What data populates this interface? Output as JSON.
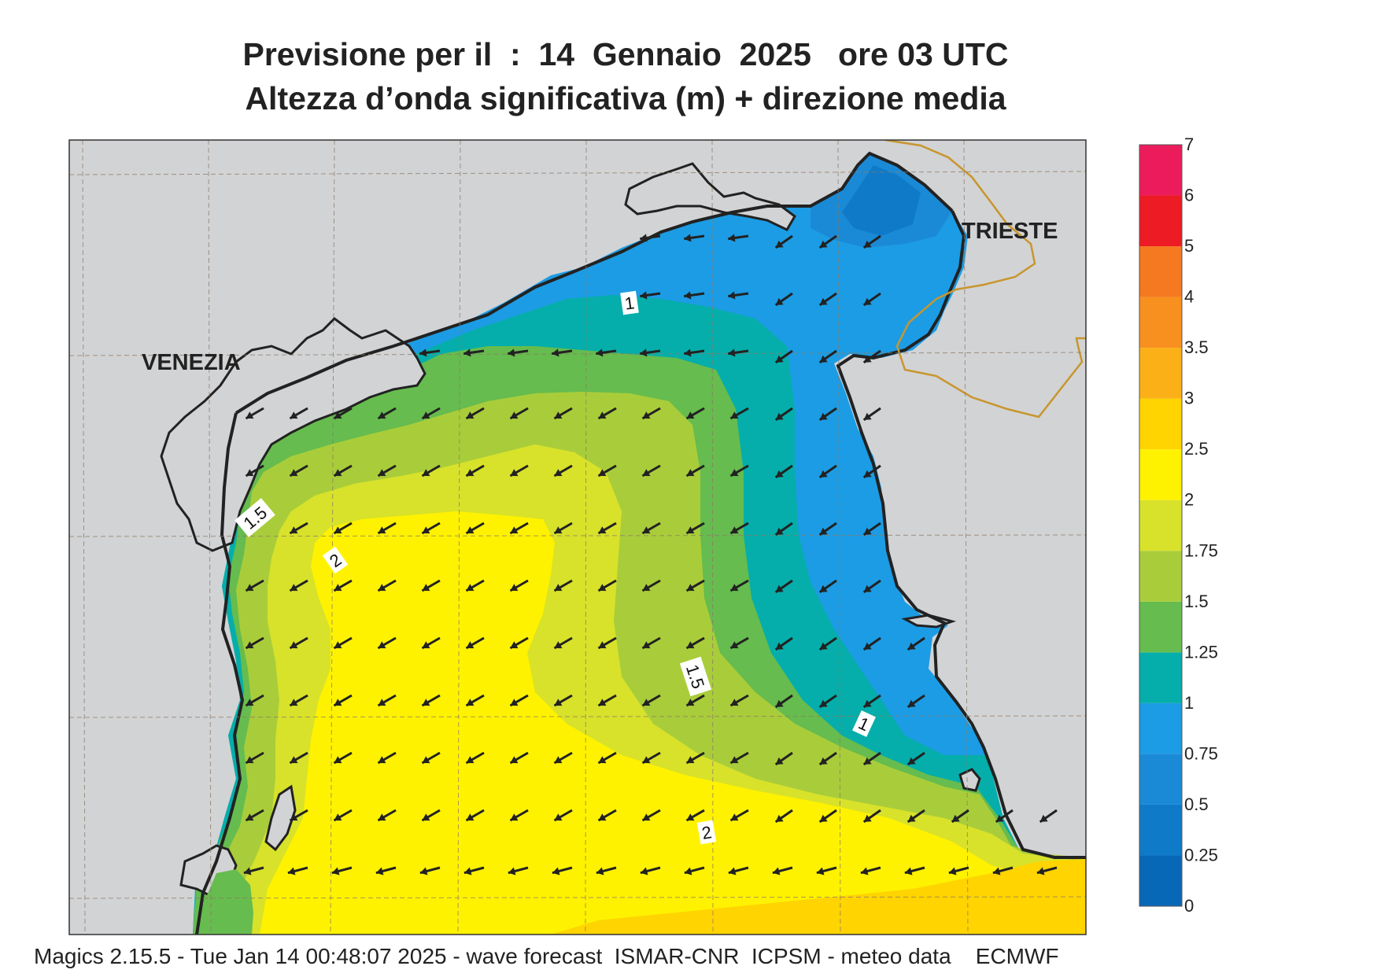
{
  "title": {
    "line1": "Previsione per il  :  14  Gennaio  2025   ore 03 UTC",
    "line2": "Altezza d’onda significativa (m) + direzione media"
  },
  "cities": [
    {
      "name": "VENEZIA"
    },
    {
      "name": "TRIESTE"
    }
  ],
  "contour_labels": [
    "1",
    "1.5",
    "2",
    "1.5",
    "1",
    "2"
  ],
  "legend": {
    "levels": [
      {
        "label": "0",
        "color": "#0868b8"
      },
      {
        "label": "0.25",
        "color": "#0f7ac8"
      },
      {
        "label": "0.5",
        "color": "#1b8ad6"
      },
      {
        "label": "0.75",
        "color": "#1c9ce4"
      },
      {
        "label": "1",
        "color": "#05aeaa"
      },
      {
        "label": "1.25",
        "color": "#66bc4e"
      },
      {
        "label": "1.5",
        "color": "#a9cd3a"
      },
      {
        "label": "1.75",
        "color": "#d8e22a"
      },
      {
        "label": "2",
        "color": "#fff200"
      },
      {
        "label": "2.5",
        "color": "#ffd400"
      },
      {
        "label": "3",
        "color": "#fbb017"
      },
      {
        "label": "3.5",
        "color": "#f7901e"
      },
      {
        "label": "4",
        "color": "#f47920"
      },
      {
        "label": "5",
        "color": "#ed1c24"
      },
      {
        "label": "6",
        "color": "#ec1c5c"
      },
      {
        "label": "7",
        "color": ""
      }
    ]
  },
  "colors": {
    "land": "#d2d3d5",
    "coast": "#222222",
    "border": "#c8962e",
    "grid": "#8a7a66",
    "arrow": "#222222"
  },
  "footer": "Magics 2.15.5 - Tue Jan 14 00:48:07 2025 - wave forecast  ISMAR-CNR  ICPSM - meteo data    ECMWF"
}
